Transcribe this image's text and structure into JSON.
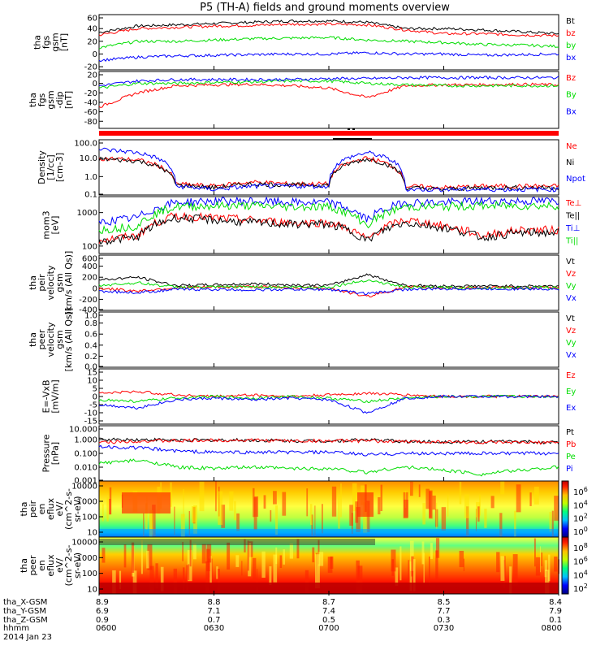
{
  "title": "P5 (TH-A) fields and ground moments overview",
  "colors": {
    "black": "#000000",
    "red": "#ff0000",
    "green": "#00dd00",
    "blue": "#0000ff"
  },
  "chart_data": [
    {
      "type": "line",
      "panel_id": "fgs_gsm",
      "ylabel": [
        "tha",
        "fgs",
        "gsm",
        "[nT]"
      ],
      "yticks": [
        "60",
        "40",
        "20",
        "0",
        "-20"
      ],
      "ylim": [
        -25,
        62
      ],
      "series": [
        {
          "name": "Bt",
          "color": "black",
          "values": [
            34,
            44,
            46,
            48,
            50,
            52,
            52,
            50,
            40,
            40,
            38,
            35,
            32
          ]
        },
        {
          "name": "bz",
          "color": "red",
          "values": [
            30,
            40,
            42,
            44,
            45,
            47,
            47,
            46,
            38,
            32,
            32,
            30,
            29
          ]
        },
        {
          "name": "by",
          "color": "green",
          "values": [
            10,
            20,
            20,
            22,
            24,
            25,
            26,
            22,
            20,
            18,
            15,
            14,
            12
          ]
        },
        {
          "name": "bx",
          "color": "blue",
          "values": [
            -10,
            -5,
            -3,
            -2,
            -1,
            0,
            0,
            2,
            0,
            0,
            -2,
            -1,
            0
          ]
        }
      ]
    },
    {
      "type": "line",
      "panel_id": "fgs_gsm_dip",
      "ylabel": [
        "tha",
        "fgs",
        "gsm",
        "-dip",
        "[nT]"
      ],
      "yticks": [
        "20",
        "0",
        "-20",
        "-40",
        "-60",
        "-80"
      ],
      "ylim": [
        -95,
        25
      ],
      "series": [
        {
          "name": "Bz",
          "color": "red",
          "values": [
            -50,
            -20,
            -5,
            -3,
            -2,
            -5,
            -10,
            -30,
            -5,
            -3,
            -3,
            -2,
            -3
          ]
        },
        {
          "name": "By",
          "color": "green",
          "values": [
            -10,
            0,
            0,
            2,
            3,
            5,
            5,
            0,
            -3,
            -5,
            -5,
            -5,
            -5
          ]
        },
        {
          "name": "Bx",
          "color": "blue",
          "values": [
            -5,
            5,
            8,
            8,
            8,
            8,
            10,
            10,
            12,
            12,
            12,
            12,
            12
          ]
        }
      ]
    },
    {
      "type": "line",
      "panel_id": "density",
      "ylabel": [
        "Density",
        "[1/cc]",
        "[cm-3]"
      ],
      "yticks": [
        "100.0",
        "10.0",
        "1.0",
        "0.1"
      ],
      "log": true,
      "ylim": [
        0.1,
        100
      ],
      "series": [
        {
          "name": "Ne",
          "color": "red",
          "values": [
            10,
            8,
            0.4,
            0.3,
            0.5,
            0.4,
            0.4,
            10,
            0.3,
            0.25,
            0.3,
            0.3,
            0.3
          ]
        },
        {
          "name": "Ni",
          "color": "black",
          "values": [
            9,
            7,
            0.35,
            0.25,
            0.4,
            0.35,
            0.35,
            9,
            0.25,
            0.2,
            0.25,
            0.25,
            0.25
          ]
        },
        {
          "name": "Npot",
          "color": "blue",
          "values": [
            30,
            20,
            0.3,
            0.2,
            0.3,
            0.3,
            0.3,
            20,
            0.2,
            0.2,
            0.2,
            0.2,
            0.2
          ]
        }
      ]
    },
    {
      "type": "line",
      "panel_id": "temperature",
      "ylabel": [
        "mom3",
        "[eV]"
      ],
      "yticks": [
        "1000",
        "100"
      ],
      "log": true,
      "ylim": [
        60,
        3000
      ],
      "series": [
        {
          "name": "Te⊥",
          "color": "red",
          "values": [
            150,
            200,
            800,
            700,
            600,
            500,
            500,
            150,
            600,
            400,
            200,
            300,
            300
          ]
        },
        {
          "name": "Te||",
          "color": "black",
          "values": [
            140,
            180,
            700,
            600,
            500,
            450,
            450,
            140,
            500,
            350,
            180,
            250,
            250
          ]
        },
        {
          "name": "Ti⊥",
          "color": "blue",
          "values": [
            500,
            700,
            2000,
            2200,
            2200,
            2000,
            2000,
            600,
            2000,
            2000,
            2200,
            2200,
            2200
          ]
        },
        {
          "name": "Ti||",
          "color": "green",
          "values": [
            300,
            400,
            1500,
            1600,
            1600,
            1500,
            1500,
            400,
            1500,
            1500,
            1600,
            1600,
            1600
          ]
        }
      ]
    },
    {
      "type": "line",
      "panel_id": "ion_velocity",
      "ylabel": [
        "tha",
        "peir",
        "velocity",
        "gsm",
        "[km/s (All Qs)]"
      ],
      "yticks": [
        "600",
        "400",
        "200",
        "0",
        "-200",
        "-400"
      ],
      "ylim": [
        -400,
        600
      ],
      "series": [
        {
          "name": "Vt",
          "color": "black",
          "values": [
            150,
            200,
            50,
            60,
            80,
            60,
            50,
            250,
            50,
            40,
            40,
            40,
            40
          ]
        },
        {
          "name": "Vz",
          "color": "red",
          "values": [
            0,
            -50,
            10,
            20,
            30,
            10,
            0,
            -150,
            20,
            10,
            10,
            10,
            10
          ]
        },
        {
          "name": "Vy",
          "color": "green",
          "values": [
            50,
            100,
            20,
            20,
            30,
            20,
            20,
            150,
            20,
            10,
            10,
            10,
            10
          ]
        },
        {
          "name": "Vx",
          "color": "blue",
          "values": [
            -50,
            -80,
            -20,
            -20,
            -30,
            -20,
            -20,
            -100,
            -20,
            -10,
            -10,
            -10,
            -10
          ]
        }
      ]
    },
    {
      "type": "line",
      "panel_id": "electron_velocity",
      "ylabel": [
        "tha",
        "peer",
        "velocity",
        "gsm",
        "[km/s (All Qs)]"
      ],
      "yticks": [
        "1.0",
        "0.8",
        "0.6",
        "0.4",
        "0.2",
        "0.0"
      ],
      "ylim": [
        0,
        1
      ],
      "series": [
        {
          "name": "Vt",
          "color": "black",
          "values": []
        },
        {
          "name": "Vz",
          "color": "red",
          "values": []
        },
        {
          "name": "Vy",
          "color": "green",
          "values": []
        },
        {
          "name": "Vx",
          "color": "blue",
          "values": []
        }
      ]
    },
    {
      "type": "line",
      "panel_id": "efield",
      "ylabel": [
        "E=-VxB",
        "[mV/m]"
      ],
      "yticks": [
        "15",
        "10",
        "5",
        "0",
        "-5",
        "-10",
        "-15"
      ],
      "ylim": [
        -17,
        17
      ],
      "series": [
        {
          "name": "Ez",
          "color": "red",
          "values": [
            2,
            3,
            1,
            0,
            1,
            0,
            1,
            2,
            1,
            0,
            0,
            0,
            0
          ]
        },
        {
          "name": "Ey",
          "color": "green",
          "values": [
            -2,
            -3,
            -1,
            0,
            -1,
            0,
            -1,
            -3,
            -1,
            0,
            0,
            0,
            0
          ]
        },
        {
          "name": "Ex",
          "color": "blue",
          "values": [
            -5,
            -7,
            -2,
            -1,
            -2,
            -1,
            -2,
            -10,
            -1,
            0,
            0,
            0,
            0
          ]
        }
      ]
    },
    {
      "type": "line",
      "panel_id": "pressure",
      "ylabel": [
        "Pressure",
        "[nPa]"
      ],
      "yticks": [
        "10.000",
        "1.000",
        "0.100",
        "0.010",
        "0.001"
      ],
      "log": true,
      "ylim": [
        0.001,
        10
      ],
      "series": [
        {
          "name": "Pt",
          "color": "black",
          "values": [
            1.0,
            1.0,
            0.9,
            0.9,
            0.9,
            0.8,
            0.8,
            1.0,
            0.7,
            0.7,
            0.7,
            0.7,
            0.6
          ]
        },
        {
          "name": "Pb",
          "color": "red",
          "values": [
            0.6,
            0.8,
            0.8,
            0.9,
            0.9,
            0.8,
            0.8,
            0.8,
            0.7,
            0.7,
            0.6,
            0.6,
            0.6
          ]
        },
        {
          "name": "Pe",
          "color": "green",
          "values": [
            0.02,
            0.03,
            0.01,
            0.008,
            0.01,
            0.008,
            0.008,
            0.004,
            0.01,
            0.006,
            0.003,
            0.006,
            0.01
          ]
        },
        {
          "name": "Pi",
          "color": "blue",
          "values": [
            0.3,
            0.25,
            0.15,
            0.12,
            0.12,
            0.12,
            0.12,
            0.08,
            0.1,
            0.1,
            0.1,
            0.1,
            0.1
          ]
        }
      ]
    },
    {
      "type": "heatmap",
      "panel_id": "ion_spectrogram",
      "ylabel": [
        "tha",
        "peir",
        "en",
        "eflux",
        "eV/",
        "(cm^2-s-",
        "sr-eV)"
      ],
      "yticks": [
        "10000",
        "1000",
        "100",
        "10"
      ],
      "colorbar_ticks": [
        "10^6",
        "10^4",
        "10^2",
        "10^0"
      ]
    },
    {
      "type": "heatmap",
      "panel_id": "electron_spectrogram",
      "ylabel": [
        "tha",
        "peer",
        "en",
        "eflux",
        "eV/",
        "(cm^2-s-",
        "sr-eV)"
      ],
      "yticks": [
        "10000",
        "1000",
        "100",
        "10"
      ],
      "colorbar_ticks": [
        "10^8",
        "10^6",
        "10^4",
        "10^2"
      ]
    }
  ],
  "axis": {
    "row_labels": [
      "tha_X-GSM",
      "tha_Y-GSM",
      "tha_Z-GSM",
      "hhmm",
      "2014 Jan 23"
    ],
    "columns": [
      {
        "x": "8.9",
        "y": "6.9",
        "z": "0.9",
        "hhmm": "0600"
      },
      {
        "x": "8.8",
        "y": "7.1",
        "z": "0.7",
        "hhmm": "0630"
      },
      {
        "x": "8.7",
        "y": "7.4",
        "z": "0.5",
        "hhmm": "0700"
      },
      {
        "x": "8.5",
        "y": "7.7",
        "z": "0.3",
        "hhmm": "0730"
      },
      {
        "x": "8.4",
        "y": "7.9",
        "z": "0.1",
        "hhmm": "0800"
      }
    ]
  }
}
